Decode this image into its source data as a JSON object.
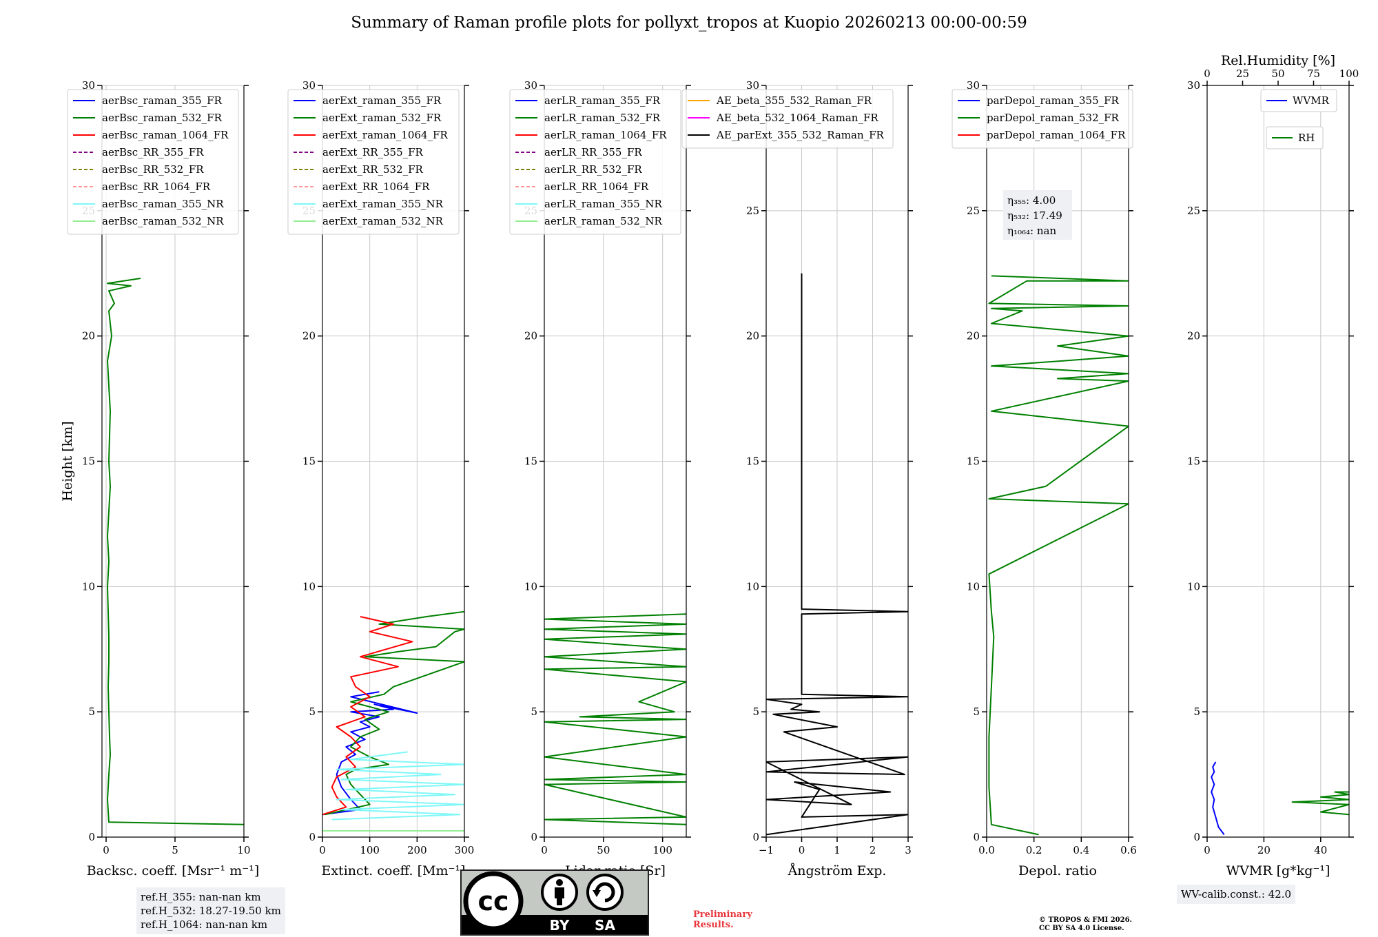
{
  "title": "Summary of Raman profile plots for pollyxt_tropos at Kuopio 20260213 00:00-00:59",
  "chart_data": [
    {
      "type": "line",
      "xlabel": "Backsc. coeff. [Msr⁻¹ m⁻¹]",
      "ylabel": "Height [km]",
      "xlim": [
        -0.3,
        10
      ],
      "ylim": [
        0,
        30
      ],
      "xticks": [
        "0",
        "5",
        "10"
      ],
      "yticks": [
        "0",
        "5",
        "10",
        "15",
        "20",
        "25",
        "30"
      ],
      "legend": [
        "aerBsc_raman_355_FR",
        "aerBsc_raman_532_FR",
        "aerBsc_raman_1064_FR",
        "aerBsc_RR_355_FR",
        "aerBsc_RR_532_FR",
        "aerBsc_RR_1064_FR",
        "aerBsc_raman_355_NR",
        "aerBsc_raman_532_NR"
      ],
      "series": [
        {
          "name": "aerBsc_raman_532_FR",
          "x": [
            10,
            0.2,
            0.1,
            0.2,
            0.3,
            0.25,
            0.2,
            0.15,
            0.2,
            0.2,
            0.15,
            0.1,
            0.2,
            0.1,
            0.2,
            0.3,
            0.2,
            0.25,
            0.3,
            0.2,
            0.1,
            0.4,
            0.2,
            0.6,
            0.2,
            1.8,
            0.1,
            2.5
          ],
          "y": [
            0.5,
            0.6,
            1.5,
            2.5,
            3.3,
            4,
            5,
            6,
            7,
            8,
            9,
            10,
            11,
            12,
            13,
            14,
            15,
            16,
            17,
            18,
            19,
            20,
            21,
            21.3,
            21.8,
            22,
            22.1,
            22.3
          ]
        }
      ]
    },
    {
      "type": "line",
      "xlabel": "Extinct. coeff. [Mm⁻¹]",
      "xlim": [
        0,
        300
      ],
      "ylim": [
        0,
        30
      ],
      "xticks": [
        "0",
        "100",
        "200",
        "300"
      ],
      "yticks": [
        "0",
        "5",
        "10",
        "15",
        "20",
        "25",
        "30"
      ],
      "legend": [
        "aerExt_raman_355_FR",
        "aerExt_raman_532_FR",
        "aerExt_raman_1064_FR",
        "aerExt_RR_355_FR",
        "aerExt_RR_532_FR",
        "aerExt_RR_1064_FR",
        "aerExt_raman_355_NR",
        "aerExt_raman_532_NR"
      ],
      "series": [
        {
          "name": "aerExt_raman_355_FR",
          "x": [
            0,
            80,
            60,
            40,
            30,
            40,
            70,
            50,
            90,
            60,
            100,
            80,
            120,
            60,
            150,
            110,
            200,
            60,
            120
          ],
          "y": [
            0.9,
            1.1,
            1.5,
            2,
            2.5,
            3,
            3.3,
            3.6,
            3.9,
            4.2,
            4.4,
            4.6,
            4.8,
            5,
            5.1,
            5.3,
            4.95,
            5.6,
            5.8
          ]
        },
        {
          "name": "aerExt_raman_532_FR",
          "x": [
            5,
            100,
            80,
            60,
            50,
            70,
            140,
            100,
            60,
            80,
            120,
            90,
            140,
            60,
            130,
            150,
            300,
            90,
            160,
            240,
            280,
            300,
            120,
            220,
            300
          ],
          "y": [
            0.9,
            1.3,
            1.7,
            2.1,
            2.5,
            2.7,
            2.9,
            3.2,
            3.6,
            4,
            4.3,
            4.7,
            5,
            5.4,
            5.7,
            6,
            7,
            7.2,
            7.4,
            7.6,
            8.2,
            8.3,
            8.5,
            8.8,
            9
          ]
        },
        {
          "name": "aerExt_raman_1064_FR",
          "x": [
            0,
            50,
            30,
            20,
            30,
            70,
            50,
            80,
            60,
            30,
            90,
            60,
            100,
            70,
            60,
            160,
            80,
            190,
            100,
            150,
            80
          ],
          "y": [
            0.9,
            1.2,
            1.6,
            2,
            2.4,
            2.8,
            3.2,
            3.6,
            4,
            4.4,
            4.8,
            5.2,
            5.6,
            6,
            6.4,
            6.8,
            7.2,
            7.8,
            8.2,
            8.5,
            8.8
          ]
        },
        {
          "name": "aerExt_raman_355_NR",
          "x": [
            20,
            290,
            40,
            300,
            30,
            280,
            50,
            300,
            40,
            250,
            30,
            300,
            60,
            180
          ],
          "y": [
            0.7,
            0.9,
            1.1,
            1.3,
            1.5,
            1.7,
            1.9,
            2.1,
            2.3,
            2.5,
            2.7,
            2.9,
            3.1,
            3.4
          ]
        },
        {
          "name": "aerExt_raman_532_NR",
          "x": [
            0,
            300
          ],
          "y": [
            0.25,
            0.25
          ]
        }
      ]
    },
    {
      "type": "line",
      "xlabel": "Lidar ratio [Sr]",
      "xlim": [
        0,
        120
      ],
      "ylim": [
        0,
        30
      ],
      "xticks": [
        "0",
        "50",
        "100"
      ],
      "yticks": [
        "0",
        "5",
        "10",
        "15",
        "20",
        "25",
        "30"
      ],
      "legend": [
        "aerLR_raman_355_FR",
        "aerLR_raman_532_FR",
        "aerLR_raman_1064_FR",
        "aerLR_RR_355_FR",
        "aerLR_RR_532_FR",
        "aerLR_RR_1064_FR",
        "aerLR_raman_355_NR",
        "aerLR_raman_532_NR"
      ],
      "series": [
        {
          "name": "aerLR_raman_532_FR",
          "x": [
            120,
            0,
            120,
            0,
            120,
            0,
            120,
            0,
            120,
            0,
            120,
            30,
            110,
            80,
            120,
            0,
            120,
            0,
            120,
            0,
            120,
            0,
            120,
            0,
            120
          ],
          "y": [
            0.5,
            0.7,
            0.8,
            2.1,
            2.2,
            2.3,
            2.5,
            3.2,
            4.0,
            4.6,
            4.7,
            4.8,
            5.0,
            5.4,
            6.2,
            6.7,
            6.8,
            7.2,
            7.5,
            7.9,
            8.1,
            8.3,
            8.5,
            8.7,
            8.9
          ]
        }
      ]
    },
    {
      "type": "line",
      "xlabel": "Ångström Exp.",
      "xlim": [
        -1,
        3
      ],
      "ylim": [
        0,
        30
      ],
      "xticks": [
        "−1",
        "0",
        "1",
        "2",
        "3"
      ],
      "yticks": [
        "0",
        "5",
        "10",
        "15",
        "20",
        "25",
        "30"
      ],
      "legend": [
        "AE_beta_355_532_Raman_FR",
        "AE_beta_532_1064_Raman_FR",
        "AE_parExt_355_532_Raman_FR"
      ],
      "series": [
        {
          "name": "AE_parExt_355_532_Raman_FR",
          "x": [
            0,
            0,
            0,
            3,
            0,
            0,
            0,
            3,
            -1,
            0,
            -0.3,
            0.5,
            -0.8,
            1,
            -0.5,
            2.9,
            -1,
            3,
            -1,
            1.4,
            -1,
            2.5,
            -0.2,
            0.5,
            0,
            3,
            -1
          ],
          "y": [
            22.5,
            20,
            9.1,
            9,
            8.9,
            5.8,
            5.7,
            5.6,
            5.5,
            5.3,
            5.1,
            5,
            4.9,
            4.4,
            4.2,
            2.5,
            2.6,
            3.2,
            3,
            1.3,
            1.5,
            1.8,
            2.2,
            1.9,
            0.8,
            0.9,
            0.1
          ]
        }
      ]
    },
    {
      "type": "line",
      "xlabel": "Depol. ratio",
      "xlim": [
        0,
        0.6
      ],
      "ylim": [
        0,
        30
      ],
      "xticks": [
        "0.0",
        "0.2",
        "0.4",
        "0.6"
      ],
      "yticks": [
        "0",
        "5",
        "10",
        "15",
        "20",
        "25",
        "30"
      ],
      "legend": [
        "parDepol_raman_355_FR",
        "parDepol_raman_532_FR",
        "parDepol_raman_1064_FR"
      ],
      "annotations": [
        "η₃₅₅: 4.00",
        "η₅₃₂: 17.49",
        "η₁₀₆₄: nan"
      ],
      "series": [
        {
          "name": "parDepol_raman_532_FR",
          "x": [
            0.22,
            0.02,
            0.01,
            0.01,
            0.02,
            0.03,
            0.02,
            0.01,
            0.6,
            0.01,
            0.25,
            0.6,
            0.02,
            0.6,
            0.3,
            0.6,
            0.02,
            0.6,
            0.3,
            0.6,
            0.02,
            0.15,
            0.02,
            0.6,
            0.01,
            0.17,
            0.6,
            0.02
          ],
          "y": [
            0.1,
            0.5,
            2,
            4,
            6,
            8,
            9,
            10.5,
            13.3,
            13.5,
            14,
            16.4,
            17,
            18.2,
            18.3,
            18.5,
            18.8,
            19.2,
            19.6,
            20,
            20.5,
            21,
            21.1,
            21.2,
            21.3,
            22.2,
            22.2,
            22.4
          ]
        }
      ]
    },
    {
      "type": "line",
      "xlabel": "WVMR [g*kg⁻¹]",
      "xlabel_top": "Rel.Humidity [%]",
      "xlim": [
        0,
        50
      ],
      "xlim_top": [
        0,
        100
      ],
      "ylim": [
        0,
        30
      ],
      "xticks": [
        "0",
        "20",
        "40"
      ],
      "xticks_top": [
        "0",
        "25",
        "50",
        "75",
        "100"
      ],
      "yticks": [
        "0",
        "5",
        "10",
        "15",
        "20",
        "25",
        "30"
      ],
      "legend": [
        "WVMR",
        "RH"
      ],
      "series": [
        {
          "name": "WVMR",
          "x": [
            6,
            4,
            3,
            2,
            2.5,
            1.5,
            2.5,
            1.5,
            2.5,
            2,
            3
          ],
          "y": [
            0.1,
            0.4,
            0.8,
            1.2,
            1.5,
            1.8,
            2.1,
            2.4,
            2.6,
            2.8,
            3
          ]
        },
        {
          "name": "RH",
          "x": [
            100,
            80,
            100,
            60,
            100,
            80,
            100,
            90,
            100
          ],
          "y": [
            0.9,
            1.0,
            1.3,
            1.4,
            1.5,
            1.6,
            1.7,
            1.8,
            1.8
          ]
        }
      ]
    }
  ],
  "info_boxes": {
    "refH": [
      "ref.H_355: nan-nan km",
      "ref.H_532: 18.27-19.50 km",
      "ref.H_1064: nan-nan km"
    ],
    "wv_calib": "WV-calib.const.: 42.0"
  },
  "license_badge": {
    "cc": "cc",
    "by": "BY",
    "sa": "SA"
  },
  "preliminary": [
    "Preliminary",
    "Results."
  ],
  "copyright": [
    "© TROPOS & FMI 2026.",
    "CC BY SA 4.0 License."
  ],
  "colors": {
    "c355": "#0000ff",
    "c532": "#008000",
    "c1064": "#ff0000",
    "rr355": "#800080",
    "rr532": "#808000",
    "rr1064": "#ff9999",
    "nr355": "#7ff7f7",
    "nr532": "#90ee90",
    "ae_beta_355_532": "#ffa500",
    "ae_beta_532_1064": "#ff00ff",
    "ae_parext": "#000000"
  }
}
